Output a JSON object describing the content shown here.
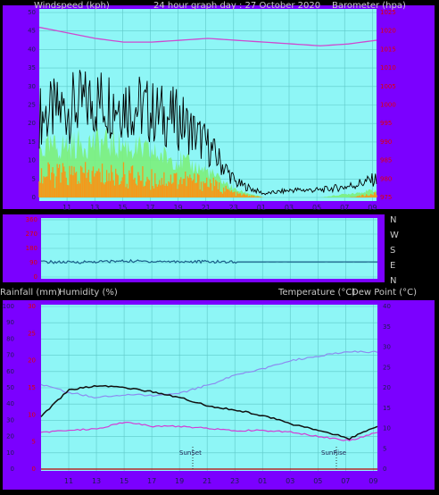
{
  "title": "24 hour graph day : 27 October 2020",
  "colors": {
    "frame": "#7B00FF",
    "plot_bg": "#8EF6F6",
    "grid": "#5FC8C8",
    "axis_text": "#1D1D4E",
    "red_text": "#E00000",
    "gust": "#000000",
    "avg_speed": "#7CF07C",
    "speed_orange": "#F39A1C",
    "barometer": "#CF48CF",
    "direction": "#1B5F8A",
    "humidity": "#8C8CF0",
    "temperature": "#101010",
    "dewpoint": "#D43BD4",
    "rain": "#C00000"
  },
  "time_labels": [
    "11",
    "13",
    "15",
    "17",
    "19",
    "21",
    "23",
    "01",
    "03",
    "05",
    "07",
    "09"
  ],
  "panels": {
    "wind": {
      "left_title": "Windspeed (kph)",
      "right_title": "Barometer (hpa)",
      "left_ticks": [
        0,
        5,
        10,
        15,
        20,
        25,
        30,
        35,
        40,
        45,
        50
      ],
      "right_ticks": [
        975,
        980,
        985,
        990,
        995,
        1000,
        1005,
        1010,
        1015,
        1020,
        1025
      ]
    },
    "direction": {
      "left_ticks": [
        "0",
        "90",
        "180",
        "270",
        "360"
      ],
      "compass": [
        "N",
        "W",
        "S",
        "E",
        "N"
      ]
    },
    "weather": {
      "left_title": "Rainfall (mm)",
      "left_title2": "Humidity (%)",
      "right_title": "Temperature (°C)",
      "right_title2": "Dew Point (°C)",
      "rain_ticks": [
        "0",
        "5",
        "10",
        "15",
        "20",
        "25",
        "30"
      ],
      "humidity_ticks": [
        0,
        10,
        20,
        30,
        40,
        50,
        60,
        70,
        80,
        90,
        100
      ],
      "temp_ticks": [
        0,
        5,
        10,
        15,
        20,
        25,
        30,
        35,
        40
      ],
      "sunset_label": "SunSet",
      "sunrise_label": "SunRise"
    }
  },
  "chart_data": [
    {
      "type": "line",
      "title": "24 hour graph day : 27 October 2020",
      "ylabel": "Windspeed (kph)",
      "y2label": "Barometer (hpa)",
      "x": [
        "09:00",
        "11:00",
        "13:00",
        "15:00",
        "17:00",
        "19:00",
        "21:00",
        "23:00",
        "01:00",
        "03:00",
        "05:00",
        "07:00",
        "09:00"
      ],
      "ylim": [
        0,
        50
      ],
      "y2lim": [
        975,
        1025
      ],
      "series": [
        {
          "name": "gust",
          "values": [
            22,
            24,
            26,
            26,
            23,
            21,
            14,
            4,
            1,
            2,
            2,
            3,
            5
          ]
        },
        {
          "name": "average speed",
          "values": [
            13,
            14,
            15,
            14,
            12,
            10,
            7,
            2,
            0,
            0,
            0,
            1,
            2
          ]
        },
        {
          "name": "wind speed",
          "values": [
            6,
            6,
            6,
            6,
            5,
            5,
            4,
            1,
            0,
            0,
            0,
            0,
            1
          ]
        },
        {
          "name": "barometer",
          "values": [
            1021,
            1019.5,
            1018,
            1017,
            1017,
            1017.5,
            1018,
            1017.5,
            1017,
            1016.5,
            1016,
            1016.5,
            1017.5
          ]
        }
      ]
    },
    {
      "type": "line",
      "x": [
        "09:00",
        "11:00",
        "13:00",
        "15:00",
        "17:00",
        "19:00",
        "21:00",
        "23:00",
        "01:00",
        "03:00",
        "05:00",
        "07:00",
        "09:00"
      ],
      "ylim": [
        0,
        360
      ],
      "series": [
        {
          "name": "wind direction",
          "values": [
            95,
            92,
            96,
            100,
            98,
            97,
            96,
            95,
            95,
            95,
            95,
            95,
            95
          ]
        }
      ]
    },
    {
      "type": "line",
      "ylabel": "Rainfall (mm) / Humidity (%)",
      "y2label": "Temperature (°C) / Dew Point (°C)",
      "x": [
        "09:00",
        "11:00",
        "13:00",
        "15:00",
        "17:00",
        "19:00",
        "21:00",
        "23:00",
        "01:00",
        "03:00",
        "05:00",
        "07:00",
        "09:00"
      ],
      "ylim": [
        0,
        100
      ],
      "y2lim": [
        0,
        40
      ],
      "series": [
        {
          "name": "humidity",
          "values": [
            52,
            47,
            44,
            46,
            45,
            47,
            52,
            58,
            62,
            67,
            70,
            72,
            72
          ]
        },
        {
          "name": "temperature",
          "values": [
            13,
            19.5,
            20.5,
            20,
            19,
            17.5,
            15.5,
            14.5,
            13,
            11,
            9.5,
            7.5,
            10.5
          ]
        },
        {
          "name": "dew point",
          "values": [
            9,
            9.5,
            10,
            11.5,
            10.5,
            10.5,
            10,
            9.5,
            9.5,
            9,
            8,
            7,
            9
          ]
        },
        {
          "name": "rainfall",
          "values": [
            0,
            0,
            0,
            0,
            0,
            0,
            0,
            0,
            0,
            0,
            0,
            0,
            0
          ]
        }
      ]
    }
  ]
}
